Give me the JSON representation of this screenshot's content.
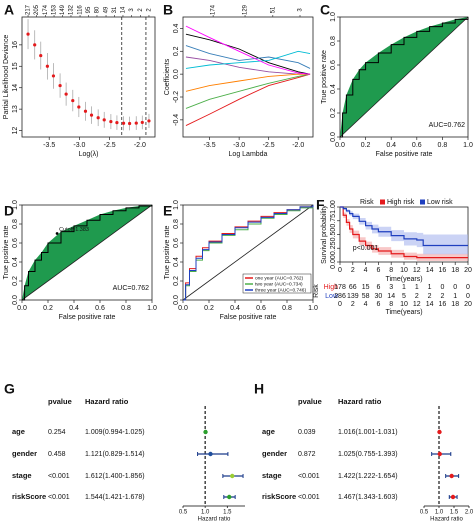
{
  "chart_data": [
    {
      "type": "errorbar",
      "panel_label": "A",
      "xlabel": "Log(λ)",
      "ylabel": "Partial Likelihood Deviance",
      "x": [
        -3.85,
        -3.74,
        -3.64,
        -3.53,
        -3.43,
        -3.32,
        -3.22,
        -3.11,
        -3.01,
        -2.9,
        -2.8,
        -2.69,
        -2.59,
        -2.48,
        -2.38,
        -2.27,
        -2.17,
        -2.06,
        -1.96,
        -1.85
      ],
      "values": [
        16.5,
        16.0,
        15.5,
        15.0,
        14.55,
        14.1,
        13.7,
        13.4,
        13.1,
        12.9,
        12.72,
        12.6,
        12.5,
        12.42,
        12.37,
        12.34,
        12.33,
        12.35,
        12.38,
        12.45
      ],
      "errors": [
        0.7,
        0.68,
        0.65,
        0.62,
        0.6,
        0.57,
        0.54,
        0.5,
        0.47,
        0.44,
        0.41,
        0.39,
        0.37,
        0.35,
        0.34,
        0.33,
        0.32,
        0.32,
        0.32,
        0.33
      ],
      "color": "#e41a1c",
      "error_color": "#aaaaaa",
      "vlines": [
        -2.3,
        -1.9
      ],
      "xlim": [
        -3.95,
        -1.75
      ],
      "xticks": [
        -3.5,
        {
          "value": -3,
          "label": "-3.0"
        },
        -2.5,
        {
          "value": -2,
          "label": "-2.0"
        }
      ],
      "ylim": [
        11.7,
        17.3
      ],
      "yticks": [
        12,
        13,
        14,
        15,
        16
      ],
      "top_ticks": [
        {
          "value": -3.85,
          "label": "217"
        },
        {
          "value": -3.71,
          "label": "205"
        },
        {
          "value": -3.56,
          "label": "174"
        },
        {
          "value": -3.42,
          "label": "153"
        },
        {
          "value": -3.28,
          "label": "149"
        },
        {
          "value": -3.14,
          "label": "132"
        },
        {
          "value": -2.99,
          "label": "116"
        },
        {
          "value": -2.85,
          "label": "95"
        },
        {
          "value": -2.71,
          "label": "80"
        },
        {
          "value": -2.56,
          "label": "49"
        },
        {
          "value": -2.42,
          "label": "31"
        },
        {
          "value": -2.28,
          "label": "14"
        },
        {
          "value": -2.14,
          "label": "3"
        },
        {
          "value": -1.99,
          "label": "2"
        },
        {
          "value": -1.85,
          "label": "2"
        }
      ]
    },
    {
      "type": "line",
      "panel_label": "B",
      "xlabel": "Log Lambda",
      "ylabel": "Coefficients",
      "x": [
        -3.9,
        -3.5,
        -3.0,
        -2.5,
        -2.0,
        -1.8
      ],
      "series": [
        {
          "color": "#000000",
          "values": [
            0.35,
            0.3,
            0.22,
            0.1,
            0.02,
            0
          ]
        },
        {
          "color": "#e41a1c",
          "values": [
            -0.45,
            -0.35,
            -0.22,
            -0.1,
            -0.03,
            0
          ]
        },
        {
          "color": "#377eb8",
          "values": [
            0.25,
            0.18,
            0.12,
            0.15,
            0.1,
            0.05
          ]
        },
        {
          "color": "#4daf4a",
          "values": [
            -0.3,
            -0.22,
            -0.15,
            -0.08,
            -0.02,
            0
          ]
        },
        {
          "color": "#984ea3",
          "values": [
            0.15,
            0.12,
            0.06,
            0.02,
            0,
            0
          ]
        },
        {
          "color": "#ff7f00",
          "values": [
            -0.15,
            -0.1,
            -0.06,
            -0.02,
            0,
            0
          ]
        },
        {
          "color": "#00bcd4",
          "values": [
            0.05,
            0.08,
            0.1,
            0.12,
            0.2,
            0.18
          ]
        },
        {
          "color": "#ff00ff",
          "values": [
            0.42,
            0.32,
            0.2,
            0.08,
            0.01,
            0
          ]
        }
      ],
      "xlim": [
        -3.95,
        -1.75
      ],
      "xticks": [
        -3.5,
        {
          "value": -3,
          "label": "-3.0"
        },
        -2.5,
        {
          "value": -2,
          "label": "-2.0"
        }
      ],
      "ylim": [
        -0.55,
        0.5
      ],
      "yticks": [
        -0.4,
        -0.2,
        {
          "value": 0,
          "label": "0.0"
        },
        0.2,
        0.4
      ],
      "top_ticks": [
        {
          "value": -3.44,
          "label": "174"
        },
        {
          "value": -2.9,
          "label": "129"
        },
        {
          "value": -2.43,
          "label": "51"
        },
        {
          "value": -1.97,
          "label": "3"
        }
      ]
    },
    {
      "type": "roc",
      "panel_label": "C",
      "xlabel": "False positive rate",
      "ylabel": "True positive rate",
      "fill": "#1f9a4e",
      "annotation": "AUC=0.762",
      "x": [
        0,
        0.02,
        0.05,
        0.1,
        0.15,
        0.2,
        0.3,
        0.4,
        0.5,
        0.6,
        0.7,
        0.8,
        0.9,
        1
      ],
      "series": [
        {
          "color": "#000000",
          "values": [
            0,
            0.2,
            0.35,
            0.48,
            0.56,
            0.62,
            0.7,
            0.77,
            0.83,
            0.88,
            0.92,
            0.95,
            0.98,
            1
          ]
        }
      ],
      "xlim": [
        0,
        1
      ],
      "xticks": [
        {
          "value": 0,
          "label": "0.0"
        },
        0.2,
        0.4,
        0.6,
        0.8,
        {
          "value": 1,
          "label": "1.0"
        }
      ],
      "ylim": [
        0,
        1
      ],
      "yticks": [
        {
          "value": 0,
          "label": "0.0"
        },
        0.2,
        0.4,
        0.6,
        0.8,
        {
          "value": 1,
          "label": "1.0"
        }
      ]
    },
    {
      "type": "roc",
      "panel_label": "D",
      "xlabel": "False positive rate",
      "ylabel": "True positive rate",
      "fill": "#1f9a4e",
      "annotation": "AUC=0.762",
      "cutoff": {
        "label": "Cutoff:1.383",
        "x": 0.27,
        "y": 0.7
      },
      "x": [
        0,
        0.02,
        0.05,
        0.1,
        0.15,
        0.2,
        0.3,
        0.4,
        0.5,
        0.6,
        0.7,
        0.8,
        0.9,
        1
      ],
      "series": [
        {
          "color": "#000000",
          "values": [
            0,
            0.15,
            0.3,
            0.42,
            0.5,
            0.6,
            0.72,
            0.78,
            0.84,
            0.9,
            0.94,
            0.97,
            0.99,
            1
          ]
        }
      ],
      "xlim": [
        0,
        1
      ],
      "xticks": [
        {
          "value": 0,
          "label": "0.0"
        },
        0.2,
        0.4,
        0.6,
        0.8,
        {
          "value": 1,
          "label": "1.0"
        }
      ],
      "ylim": [
        0,
        1
      ],
      "yticks": [
        {
          "value": 0,
          "label": "0.0"
        },
        0.2,
        0.4,
        0.6,
        0.8,
        {
          "value": 1,
          "label": "1.0"
        }
      ]
    },
    {
      "type": "roc",
      "panel_label": "E",
      "xlabel": "False positive rate",
      "ylabel": "True positive rate",
      "x": [
        0,
        0.02,
        0.05,
        0.1,
        0.15,
        0.2,
        0.3,
        0.4,
        0.5,
        0.6,
        0.7,
        0.8,
        0.9,
        1
      ],
      "series": [
        {
          "name": "one year (AUC=0.762)",
          "color": "#e41a1c",
          "values": [
            0,
            0.18,
            0.33,
            0.46,
            0.55,
            0.62,
            0.7,
            0.77,
            0.83,
            0.88,
            0.92,
            0.95,
            0.98,
            1
          ]
        },
        {
          "name": "two year (AUC=0.734)",
          "color": "#4daf4a",
          "values": [
            0,
            0.15,
            0.3,
            0.42,
            0.52,
            0.6,
            0.68,
            0.74,
            0.8,
            0.86,
            0.9,
            0.94,
            0.97,
            1
          ]
        },
        {
          "name": "three year (AUC=0.746)",
          "color": "#1f3fbf",
          "values": [
            0,
            0.16,
            0.31,
            0.44,
            0.53,
            0.61,
            0.69,
            0.76,
            0.82,
            0.87,
            0.91,
            0.95,
            0.98,
            1
          ]
        }
      ],
      "xlim": [
        0,
        1
      ],
      "xticks": [
        {
          "value": 0,
          "label": "0.0"
        },
        0.2,
        0.4,
        0.6,
        0.8,
        {
          "value": 1,
          "label": "1.0"
        }
      ],
      "ylim": [
        0,
        1
      ],
      "yticks": [
        {
          "value": 0,
          "label": "0.0"
        },
        0.2,
        0.4,
        0.6,
        0.8,
        {
          "value": 1,
          "label": "1.0"
        }
      ]
    },
    {
      "type": "survival",
      "panel_label": "F",
      "xlabel": "Time(years)",
      "ylabel": "Survival probability",
      "legend_title": "Risk",
      "annotation": "p<0.001",
      "x": [
        0,
        0.5,
        1,
        1.5,
        2,
        3,
        4,
        5,
        6,
        8,
        10,
        12,
        13,
        15,
        18,
        20
      ],
      "series": [
        {
          "name": "High risk",
          "color": "#e41a1c",
          "band_color": "#f4a3a3",
          "values": [
            1,
            0.85,
            0.72,
            0.6,
            0.5,
            0.38,
            0.3,
            0.24,
            0.2,
            0.15,
            0.1,
            0.08,
            0.08,
            0.08,
            0.08,
            0.08
          ],
          "lower": [
            1,
            0.8,
            0.66,
            0.53,
            0.43,
            0.31,
            0.23,
            0.17,
            0.13,
            0.08,
            0.04,
            0.02,
            0.02,
            0.02,
            0.02,
            0.02
          ],
          "upper": [
            1,
            0.9,
            0.78,
            0.67,
            0.57,
            0.45,
            0.37,
            0.31,
            0.27,
            0.22,
            0.17,
            0.15,
            0.15,
            0.15,
            0.15,
            0.15
          ]
        },
        {
          "name": "Low risk",
          "color": "#1f3fbf",
          "band_color": "#a9b6ee",
          "values": [
            1,
            0.97,
            0.93,
            0.88,
            0.83,
            0.74,
            0.66,
            0.6,
            0.55,
            0.48,
            0.42,
            0.4,
            0.3,
            0.3,
            0.3,
            0.3
          ],
          "lower": [
            1,
            0.95,
            0.9,
            0.84,
            0.78,
            0.68,
            0.59,
            0.52,
            0.46,
            0.38,
            0.3,
            0.27,
            0.14,
            0.14,
            0.14,
            0.14
          ],
          "upper": [
            1,
            0.99,
            0.96,
            0.92,
            0.88,
            0.8,
            0.73,
            0.68,
            0.64,
            0.58,
            0.54,
            0.53,
            0.5,
            0.5,
            0.5,
            0.5
          ]
        }
      ],
      "xlim": [
        0,
        20
      ],
      "xticks": [
        0,
        2,
        4,
        6,
        8,
        10,
        12,
        14,
        16,
        18,
        20
      ],
      "ylim": [
        0,
        1
      ],
      "yticks": [
        {
          "value": 0,
          "label": "0.00"
        },
        0.25,
        {
          "value": 0.5,
          "label": "0.50"
        },
        0.75,
        {
          "value": 1,
          "label": "1.00"
        }
      ],
      "risk_table": {
        "title": "Risk",
        "xlabel": "Time(years)",
        "rows": [
          {
            "name": "High",
            "color": "#e41a1c",
            "counts": [
              178,
              66,
              15,
              6,
              3,
              1,
              1,
              1,
              0,
              0,
              0
            ]
          },
          {
            "name": "Low",
            "color": "#1f3fbf",
            "counts": [
              286,
              139,
              58,
              30,
              14,
              5,
              2,
              2,
              2,
              1,
              0
            ]
          }
        ]
      }
    },
    {
      "type": "forest",
      "panel_label": "G",
      "columns": [
        "pvalue",
        "Hazard  ratio"
      ],
      "xlabel": "Hazard ratio",
      "reference": 1,
      "rows": [
        "age",
        "gender",
        "stage",
        "riskScore"
      ],
      "pvalues": [
        "0.254",
        "0.458",
        "<0.001",
        "<0.001"
      ],
      "hr_labels": [
        "1.009(0.994-1.025)",
        "1.121(0.829-1.514)",
        "1.612(1.400-1.856)",
        "1.544(1.421-1.678)"
      ],
      "hr": [
        1.009,
        1.121,
        1.612,
        1.544
      ],
      "lower": [
        0.994,
        0.829,
        1.4,
        1.421
      ],
      "upper": [
        1.025,
        1.514,
        1.856,
        1.678
      ],
      "point_colors": [
        "#2ca02c",
        "#1f4e9c",
        "#9acd32",
        "#2ca02c"
      ],
      "line_color": "#1a3a8a",
      "xlim": [
        0.5,
        1.9
      ],
      "xticks": [
        0.5,
        {
          "value": 1,
          "label": "1.0"
        },
        1.5
      ]
    },
    {
      "type": "forest",
      "panel_label": "H",
      "columns": [
        "pvalue",
        "Hazard  ratio"
      ],
      "xlabel": "Hazard ratio",
      "reference": 1,
      "rows": [
        "age",
        "gender",
        "stage",
        "riskScore"
      ],
      "pvalues": [
        "0.039",
        "0.872",
        "<0.001",
        "<0.001"
      ],
      "hr_labels": [
        "1.016(1.001-1.031)",
        "1.025(0.755-1.393)",
        "1.422(1.222-1.654)",
        "1.467(1.343-1.603)"
      ],
      "hr": [
        1.016,
        1.025,
        1.422,
        1.467
      ],
      "lower": [
        1.001,
        0.755,
        1.222,
        1.343
      ],
      "upper": [
        1.031,
        1.393,
        1.654,
        1.603
      ],
      "point_colors": [
        "#e41a1c",
        "#e41a1c",
        "#e41a1c",
        "#e41a1c"
      ],
      "line_color": "#1a3a8a",
      "xlim": [
        0.5,
        2.0
      ],
      "xticks": [
        0.5,
        {
          "value": 1,
          "label": "1.0"
        },
        1.5,
        {
          "value": 2,
          "label": "2.0"
        }
      ]
    }
  ]
}
